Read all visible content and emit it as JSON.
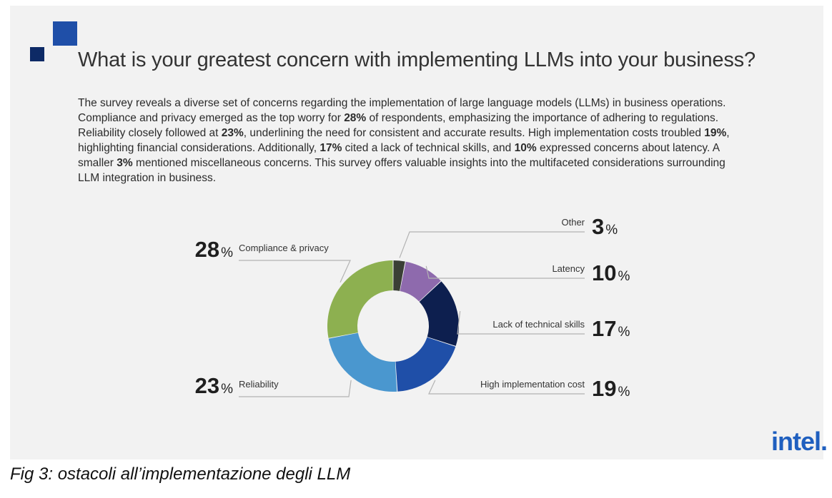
{
  "header": {
    "title": "What is your greatest concern with implementing LLMs into your business?"
  },
  "intro": {
    "segments": [
      {
        "text": "The survey reveals a diverse set of concerns regarding the implementation of large language models (LLMs) in business operations. Compliance and privacy emerged as the top worry for ",
        "bold": false
      },
      {
        "text": "28%",
        "bold": true
      },
      {
        "text": " of respondents, emphasizing the importance of adhering to regulations. Reliability closely followed at ",
        "bold": false
      },
      {
        "text": "23%",
        "bold": true
      },
      {
        "text": ", underlining the need for consistent and accurate results. High implementation costs troubled ",
        "bold": false
      },
      {
        "text": "19%",
        "bold": true
      },
      {
        "text": ", highlighting financial considerations. Additionally, ",
        "bold": false
      },
      {
        "text": "17%",
        "bold": true
      },
      {
        "text": " cited a lack of technical skills, and ",
        "bold": false
      },
      {
        "text": "10%",
        "bold": true
      },
      {
        "text": " expressed concerns about latency. A smaller ",
        "bold": false
      },
      {
        "text": "3%",
        "bold": true
      },
      {
        "text": " mentioned miscellaneous concerns. This survey offers valuable insights into the multifaceted considerations surrounding LLM integration in business.",
        "bold": false
      }
    ]
  },
  "chart_data": {
    "type": "pie",
    "donut": true,
    "start": "top, clockwise",
    "categories": [
      "Other",
      "Latency",
      "Lack of technical skills",
      "High implementation cost",
      "Reliability",
      "Compliance & privacy"
    ],
    "values": [
      3,
      10,
      17,
      19,
      23,
      28
    ],
    "colors": [
      "#3a3f35",
      "#8e6aad",
      "#0d1f4f",
      "#1f4fa8",
      "#4a97cf",
      "#8db050"
    ],
    "percent_symbol": "%",
    "legend": "labels beside slices with leader lines"
  },
  "logo": {
    "text": "intel."
  },
  "caption": {
    "text": "Fig 3: ostacoli all’implementazione degli LLM"
  }
}
